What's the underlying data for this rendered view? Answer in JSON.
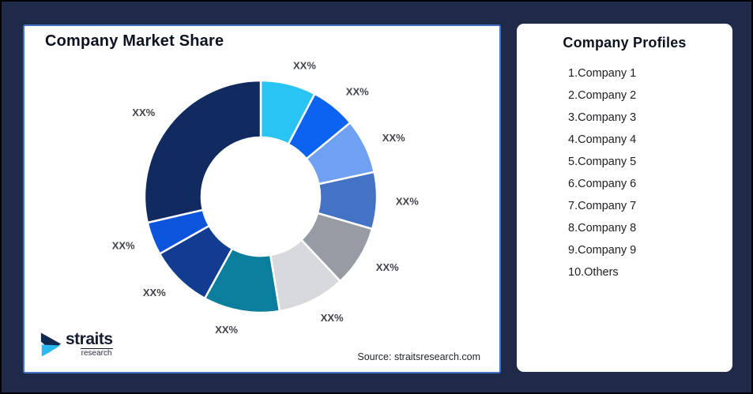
{
  "window": {
    "background_color": "#1f2a48",
    "frame_border_color": "#000000"
  },
  "chart_card": {
    "title": "Company Market Share",
    "border_color": "#4472c4",
    "source_text": "Source: straitsresearch.com",
    "logo": {
      "brand": "straits",
      "sub": "research",
      "mark_top_color": "#12284e",
      "mark_bottom_color": "#29b9ee"
    }
  },
  "chart_data": {
    "type": "pie",
    "variant": "donut",
    "title": "Company Market Share",
    "legend_position": "none",
    "start_angle_deg": 0,
    "label_text_all_segments": "XX%",
    "segments": [
      {
        "name": "Company 1",
        "label": "XX%",
        "value": 7.7,
        "color": "#29c4f4"
      },
      {
        "name": "Company 2",
        "label": "XX%",
        "value": 6.3,
        "color": "#0b63f0"
      },
      {
        "name": "Company 3",
        "label": "XX%",
        "value": 7.6,
        "color": "#6fa0f1"
      },
      {
        "name": "Company 4",
        "label": "XX%",
        "value": 7.9,
        "color": "#4472c4"
      },
      {
        "name": "Company 5",
        "label": "XX%",
        "value": 8.5,
        "color": "#979ba4"
      },
      {
        "name": "Company 6",
        "label": "XX%",
        "value": 9.4,
        "color": "#d7d9dd"
      },
      {
        "name": "Company 7",
        "label": "XX%",
        "value": 10.6,
        "color": "#0c7e9d"
      },
      {
        "name": "Company 8",
        "label": "XX%",
        "value": 8.8,
        "color": "#113c8f"
      },
      {
        "name": "Company 9",
        "label": "XX%",
        "value": 4.6,
        "color": "#0d54dc"
      },
      {
        "name": "Others",
        "label": "XX%",
        "value": 28.6,
        "color": "#112a5f"
      }
    ]
  },
  "profiles": {
    "title": "Company Profiles",
    "items": [
      "1.Company 1",
      "2.Company 2",
      "3.Company 3",
      "4.Company 4",
      "5.Company 5",
      "6.Company 6",
      "7.Company 7",
      "8.Company 8",
      "9.Company 9",
      "10.Others"
    ]
  }
}
